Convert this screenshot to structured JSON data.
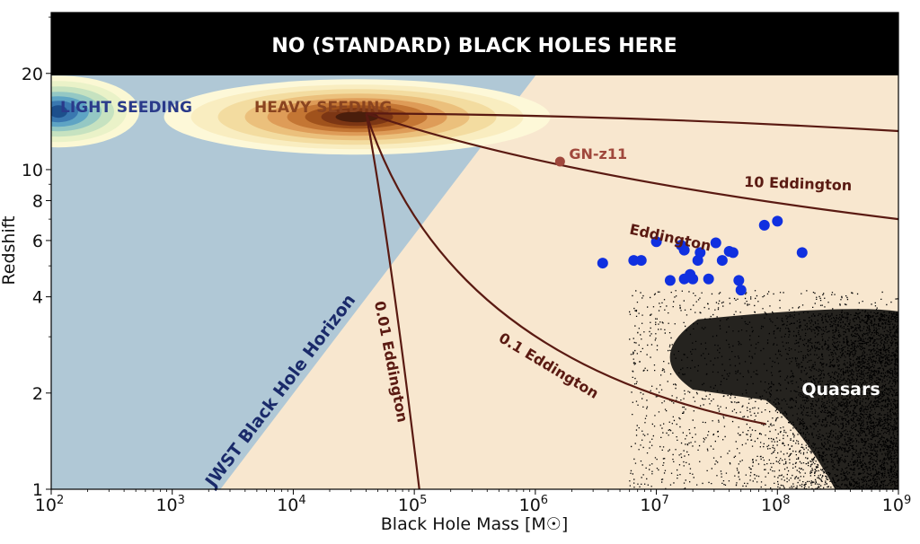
{
  "chart_data": {
    "type": "scatter",
    "title": "",
    "xlabel": "Black Hole Mass [M☉]",
    "ylabel": "Redshift",
    "x_scale": "log",
    "y_scale": "log",
    "xlim": [
      100,
      1000000000
    ],
    "ylim": [
      1,
      31
    ],
    "x_ticks": [
      {
        "value": 100,
        "base": "10",
        "exp": "2"
      },
      {
        "value": 1000,
        "base": "10",
        "exp": "3"
      },
      {
        "value": 10000,
        "base": "10",
        "exp": "4"
      },
      {
        "value": 100000,
        "base": "10",
        "exp": "5"
      },
      {
        "value": 1000000,
        "base": "10",
        "exp": "6"
      },
      {
        "value": 10000000,
        "base": "10",
        "exp": "7"
      },
      {
        "value": 100000000,
        "base": "10",
        "exp": "8"
      },
      {
        "value": 1000000000,
        "base": "10",
        "exp": "9"
      }
    ],
    "y_ticks": [
      1,
      2,
      4,
      6,
      8,
      10,
      20
    ],
    "banner": "NO (STANDARD) BLACK HOLES HERE",
    "region_labels": {
      "light_seeding": "LIGHT SEEDING",
      "heavy_seeding": "HEAVY SEEDING",
      "horizon": "JWST Black Hole Horizon",
      "quasars": "Quasars"
    },
    "growth_tracks": [
      {
        "label": "10 Eddington",
        "start": [
          40000,
          15
        ],
        "end": [
          1000000000,
          13.2
        ]
      },
      {
        "label": "Eddington",
        "start": [
          40000,
          15
        ],
        "end": [
          1000000000,
          7.0
        ]
      },
      {
        "label": "0.1 Eddington",
        "start": [
          40000,
          15
        ],
        "end": [
          80000000,
          1.6
        ]
      },
      {
        "label": "0.01 Eddington",
        "start": [
          40000,
          15
        ],
        "end": [
          110000,
          1.0
        ]
      }
    ],
    "special_point": {
      "label": "GN-z11",
      "x": 1600000,
      "y": 10.6
    },
    "jwst_agn_points": [
      {
        "x": 3600000,
        "y": 5.1
      },
      {
        "x": 6500000,
        "y": 5.2
      },
      {
        "x": 7500000,
        "y": 5.2
      },
      {
        "x": 10000000,
        "y": 5.95
      },
      {
        "x": 13000000,
        "y": 4.5
      },
      {
        "x": 16000000,
        "y": 5.8
      },
      {
        "x": 17000000,
        "y": 5.6
      },
      {
        "x": 17000000,
        "y": 4.55
      },
      {
        "x": 19000000,
        "y": 4.7
      },
      {
        "x": 20000000,
        "y": 4.55
      },
      {
        "x": 22000000,
        "y": 5.2
      },
      {
        "x": 23000000,
        "y": 5.5
      },
      {
        "x": 27000000,
        "y": 4.55
      },
      {
        "x": 31000000,
        "y": 5.9
      },
      {
        "x": 35000000,
        "y": 5.2
      },
      {
        "x": 40000000,
        "y": 5.55
      },
      {
        "x": 43000000,
        "y": 5.5
      },
      {
        "x": 48000000,
        "y": 4.5
      },
      {
        "x": 50000000,
        "y": 4.2
      },
      {
        "x": 78000000,
        "y": 6.7
      },
      {
        "x": 100000000,
        "y": 6.9
      },
      {
        "x": 160000000,
        "y": 5.5
      }
    ],
    "colors": {
      "banner": "#000000",
      "excluded_region": "#b0c8d6",
      "observable_region": "#f8e7cf",
      "tracks": "#5a1a12",
      "gn_z11": "#a0483c",
      "jwst_points": "#1030e0",
      "light_seeding_text": "#2a3a8a",
      "heavy_seeding_text": "#8a4420",
      "horizon_text": "#1a2a6a",
      "quasars": "#000000"
    }
  }
}
